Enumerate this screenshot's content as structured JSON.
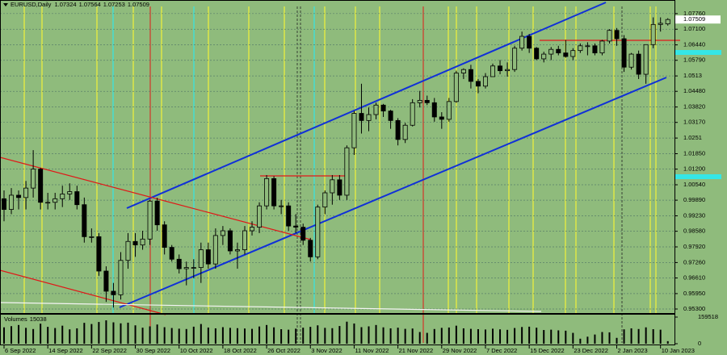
{
  "chart_data": [
    {
      "type": "candlestick",
      "title": "EURUSD,Daily",
      "categories": [
        "6 Sep 2022",
        null,
        null,
        null,
        null,
        null,
        "14 Sep 2022",
        null,
        null,
        null,
        null,
        null,
        "22 Sep 2022",
        null,
        null,
        null,
        null,
        null,
        "30 Sep 2022",
        null,
        null,
        null,
        null,
        null,
        "10 Oct 2022",
        null,
        null,
        null,
        null,
        null,
        "18 Oct 2022",
        null,
        null,
        null,
        null,
        null,
        "26 Oct 2022",
        null,
        null,
        null,
        null,
        null,
        "3 Nov 2022",
        null,
        null,
        null,
        null,
        null,
        "11 Nov 2022",
        null,
        null,
        null,
        null,
        null,
        "21 Nov 2022",
        null,
        null,
        null,
        null,
        null,
        "29 Nov 2022",
        null,
        null,
        null,
        null,
        null,
        "7 Dec 2022",
        null,
        null,
        null,
        null,
        null,
        "15 Dec 2022",
        null,
        null,
        null,
        null,
        null,
        "23 Dec 2022",
        null,
        null,
        null,
        null,
        null,
        "2 Jan 2023",
        null,
        null,
        null,
        null,
        null,
        "10 Jan 2023",
        null
      ],
      "open": [
        0.9995,
        0.995,
        1.001,
        1.0,
        1.004,
        1.012,
        0.998,
        0.998,
        0.9995,
        1.0015,
        1.0025,
        0.997,
        0.9835,
        0.9835,
        0.969,
        0.9605,
        0.959,
        0.9735,
        0.9815,
        0.98,
        0.9825,
        0.9985,
        0.9885,
        0.979,
        0.974,
        0.97,
        0.9705,
        0.9705,
        0.978,
        0.972,
        0.984,
        0.986,
        0.9775,
        0.978,
        0.986,
        0.9875,
        0.9965,
        1.008,
        0.9965,
        0.9965,
        0.988,
        0.9875,
        0.982,
        0.975,
        0.996,
        1.002,
        1.0075,
        1.001,
        1.021,
        1.0355,
        1.0325,
        1.035,
        1.039,
        1.0365,
        1.0325,
        1.0245,
        1.0305,
        1.04,
        1.041,
        1.04,
        1.034,
        1.033,
        1.0405,
        1.0525,
        1.054,
        1.049,
        1.047,
        1.051,
        1.0555,
        1.0535,
        1.054,
        1.063,
        1.068,
        1.063,
        1.0585,
        1.0605,
        1.0625,
        1.061,
        1.0595,
        1.062,
        1.064,
        1.064,
        1.061,
        1.066,
        1.0705,
        1.067,
        1.055,
        1.0605,
        1.052,
        1.0645,
        1.073,
        1.07324
      ],
      "high": [
        1.003,
        1.004,
        1.003,
        1.007,
        1.02,
        1.0125,
        1.002,
        1.002,
        1.005,
        1.006,
        1.005,
        1.0,
        0.987,
        0.985,
        0.971,
        0.964,
        0.977,
        0.985,
        0.985,
        0.986,
        0.999,
        0.9999,
        0.99,
        0.98,
        0.976,
        0.973,
        0.974,
        0.981,
        0.981,
        0.987,
        0.988,
        0.987,
        0.981,
        0.988,
        0.99,
        0.998,
        1.0095,
        1.009,
        0.999,
        0.998,
        0.993,
        0.989,
        0.983,
        0.997,
        1.003,
        1.0095,
        1.0095,
        1.022,
        1.0365,
        1.048,
        1.038,
        1.04,
        1.0395,
        1.037,
        1.0335,
        1.0315,
        1.0415,
        1.045,
        1.043,
        1.042,
        1.036,
        1.042,
        1.0535,
        1.0545,
        1.056,
        1.05,
        1.0525,
        1.0565,
        1.058,
        1.057,
        1.064,
        1.07,
        1.069,
        1.0635,
        1.0615,
        1.0635,
        1.064,
        1.0665,
        1.063,
        1.065,
        1.0655,
        1.065,
        1.0665,
        1.071,
        1.0715,
        1.0685,
        1.061,
        1.062,
        1.0645,
        1.076,
        1.076,
        1.07564
      ],
      "low": [
        0.99,
        0.993,
        0.995,
        0.995,
        1.0,
        0.995,
        0.995,
        0.995,
        0.996,
        0.999,
        0.995,
        0.981,
        0.981,
        0.967,
        0.956,
        0.9536,
        0.957,
        0.97,
        0.975,
        0.978,
        0.98,
        0.986,
        0.976,
        0.973,
        0.968,
        0.963,
        0.966,
        0.964,
        0.97,
        0.97,
        0.98,
        0.976,
        0.97,
        0.976,
        0.984,
        0.985,
        0.995,
        0.995,
        0.993,
        0.986,
        0.985,
        0.98,
        0.973,
        0.974,
        0.993,
        0.997,
        0.999,
        0.999,
        1.018,
        1.027,
        1.028,
        1.033,
        1.034,
        1.029,
        1.022,
        1.023,
        1.03,
        1.038,
        1.039,
        1.032,
        1.029,
        1.032,
        1.04,
        1.05,
        1.046,
        1.044,
        1.046,
        1.051,
        1.052,
        1.051,
        1.053,
        1.062,
        1.061,
        1.058,
        1.057,
        1.058,
        1.06,
        1.059,
        1.058,
        1.061,
        1.06,
        1.06,
        1.06,
        1.065,
        1.064,
        1.053,
        1.054,
        1.05,
        1.048,
        1.063,
        1.07,
        1.07253
      ],
      "close": [
        0.995,
        1.001,
        1.0,
        1.004,
        1.012,
        0.998,
        0.998,
        0.9995,
        1.0015,
        1.0025,
        0.997,
        0.9835,
        0.9835,
        0.969,
        0.9605,
        0.959,
        0.9735,
        0.9815,
        0.98,
        0.9825,
        0.9985,
        0.9885,
        0.979,
        0.974,
        0.97,
        0.9705,
        0.9705,
        0.978,
        0.972,
        0.984,
        0.986,
        0.9775,
        0.978,
        0.986,
        0.9875,
        0.9965,
        1.008,
        0.9965,
        0.9965,
        0.988,
        0.9875,
        0.982,
        0.975,
        0.996,
        1.002,
        1.0075,
        1.001,
        1.021,
        1.0355,
        1.0325,
        1.035,
        1.039,
        1.0365,
        1.0325,
        1.0245,
        1.0305,
        1.04,
        1.041,
        1.04,
        1.034,
        1.033,
        1.0405,
        1.0525,
        1.054,
        1.049,
        1.047,
        1.051,
        1.0555,
        1.0535,
        1.054,
        1.063,
        1.068,
        1.063,
        1.0585,
        1.0605,
        1.0625,
        1.061,
        1.0595,
        1.062,
        1.064,
        1.064,
        1.061,
        1.066,
        1.0705,
        1.067,
        1.055,
        1.0605,
        1.052,
        1.0645,
        1.073,
        1.0735,
        1.07509
      ],
      "ylim": [
        0.9513,
        1.0806
      ],
      "yticks": [
        {
          "value": 1.0776,
          "label": "1.07760"
        },
        {
          "value": 1.071,
          "label": "1.07100"
        },
        {
          "value": 1.0644,
          "label": "1.06440"
        },
        {
          "value": 1.0579,
          "label": "1.05790"
        },
        1.0513,
        {
          "value": 1.0448,
          "label": "1.04480"
        },
        {
          "value": 1.0382,
          "label": "1.03820"
        },
        {
          "value": 1.0317,
          "label": "1.03170"
        },
        1.0251,
        {
          "value": 1.0185,
          "label": "1.01850"
        },
        {
          "value": 1.012,
          "label": "1.01200"
        },
        {
          "value": 1.0054,
          "label": "1.00540"
        },
        {
          "value": 0.9989,
          "label": "0.99890"
        },
        {
          "value": 0.9923,
          "label": "0.99230"
        },
        {
          "value": 0.9858,
          "label": "0.98580"
        },
        {
          "value": 0.9792,
          "label": "0.97920"
        },
        {
          "value": 0.9726,
          "label": "0.97260"
        },
        {
          "value": 0.9661,
          "label": "0.96610"
        },
        {
          "value": 0.9595,
          "label": "0.95950"
        },
        {
          "value": 0.953,
          "label": "0.95300"
        }
      ],
      "grid": true,
      "up_color": "#8fbb7c",
      "down_color": "#000000",
      "background": "#8fbb7c"
    },
    {
      "type": "bar",
      "title": "Volumes",
      "values": [
        98000,
        105000,
        112000,
        95000,
        88000,
        120000,
        101000,
        94000,
        108000,
        86000,
        92000,
        125000,
        118000,
        130000,
        140000,
        128000,
        122000,
        126000,
        110000,
        96000,
        104000,
        115000,
        99000,
        94000,
        90000,
        88000,
        102000,
        118000,
        97000,
        92000,
        99000,
        95000,
        93000,
        91000,
        89000,
        103000,
        112000,
        98000,
        87000,
        84000,
        90000,
        96000,
        101000,
        110000,
        95000,
        93000,
        106000,
        132000,
        121000,
        99000,
        104000,
        112000,
        98000,
        92000,
        96000,
        89000,
        91000,
        70000,
        65000,
        88000,
        95000,
        97000,
        108000,
        92000,
        89000,
        87000,
        85000,
        90000,
        86000,
        83000,
        94000,
        100000,
        102000,
        96000,
        82000,
        84000,
        80000,
        78000,
        65000,
        30000,
        42000,
        55000,
        70000,
        68000,
        35000,
        86000,
        92000,
        88000,
        98000,
        87000,
        84000,
        15038
      ],
      "ylim": [
        0,
        159518
      ],
      "yticks": [
        159518,
        0
      ],
      "color": "#000000"
    }
  ]
}
